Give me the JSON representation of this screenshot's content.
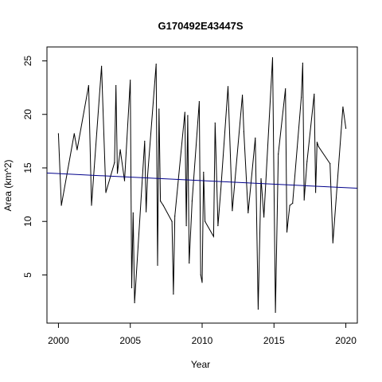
{
  "chart_data": {
    "type": "line",
    "title": "G170492E43447S",
    "xlabel": "Year",
    "ylabel": "Area (km^2)",
    "xlim": [
      1999.2,
      2020.8
    ],
    "ylim": [
      0.5,
      26.3
    ],
    "x_ticks": [
      2000,
      2005,
      2010,
      2015,
      2020
    ],
    "y_ticks": [
      5,
      10,
      15,
      20,
      25
    ],
    "grid": false,
    "legend": "none",
    "colors": {
      "series": "#000000",
      "trend": "#00008b"
    },
    "series": [
      {
        "x": [
          2000.0,
          2000.2,
          2001.1,
          2001.3,
          2002.1,
          2002.3,
          2003.0,
          2003.3,
          2003.9,
          2004.0,
          2004.1,
          2004.3,
          2004.6,
          2005.0,
          2005.1,
          2005.2,
          2005.3,
          2006.0,
          2006.1,
          2006.2,
          2006.8,
          2006.9,
          2007.0,
          2007.1,
          2007.3,
          2007.9,
          2008.0,
          2008.1,
          2008.8,
          2008.9,
          2009.0,
          2009.1,
          2009.3,
          2009.8,
          2009.9,
          2010.0,
          2010.1,
          2010.2,
          2010.8,
          2010.9,
          2011.1,
          2011.3,
          2011.8,
          2012.1,
          2012.8,
          2012.9,
          2013.2,
          2013.7,
          2013.9,
          2014.1,
          2014.3,
          2014.9,
          2015.1,
          2015.3,
          2015.8,
          2015.9,
          2016.1,
          2016.3,
          2016.9,
          2017.0,
          2017.1,
          2017.3,
          2017.8,
          2017.9,
          2018.0,
          2018.1,
          2018.9,
          2019.1,
          2019.8,
          2020.0
        ],
        "y": [
          18.2,
          11.5,
          18.2,
          16.7,
          22.7,
          11.5,
          24.5,
          12.7,
          15.5,
          22.7,
          14.5,
          16.7,
          13.8,
          23.2,
          3.8,
          10.8,
          2.4,
          17.5,
          10.9,
          14.2,
          24.7,
          5.9,
          20.5,
          11.9,
          11.5,
          10.0,
          3.2,
          10.5,
          20.2,
          9.6,
          19.9,
          6.1,
          11.9,
          21.2,
          5.0,
          4.3,
          14.6,
          10.0,
          8.6,
          19.2,
          9.6,
          13.0,
          22.6,
          11.0,
          21.8,
          18.4,
          10.8,
          17.8,
          1.8,
          14.0,
          10.4,
          25.3,
          1.5,
          16.3,
          22.4,
          9.0,
          11.5,
          11.7,
          21.6,
          24.8,
          12.0,
          15.6,
          21.9,
          12.7,
          17.4,
          17.0,
          15.4,
          8.0,
          20.7,
          18.7
        ]
      }
    ],
    "trend_line": {
      "x": [
        1999.2,
        2020.8
      ],
      "y": [
        14.52,
        13.1
      ]
    }
  }
}
